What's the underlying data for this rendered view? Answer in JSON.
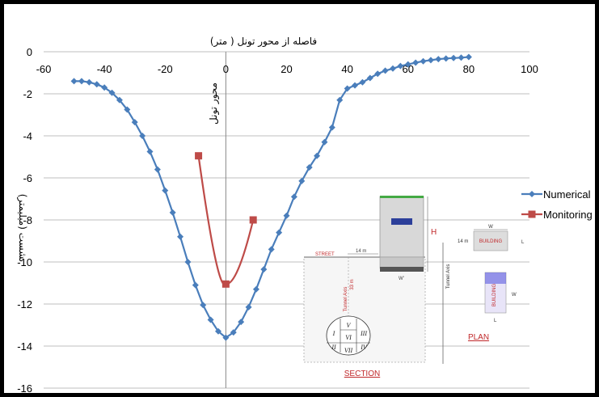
{
  "chart_data": {
    "type": "line",
    "xlabel": "فاصله از محور تونل ( متر)",
    "ylabel": "نشست (میلیمتر)",
    "xlim": [
      -60,
      100
    ],
    "ylim": [
      -16,
      0
    ],
    "x_ticks": [
      "-60",
      "-40",
      "-20",
      "0",
      "20",
      "40",
      "60",
      "80",
      "100"
    ],
    "y_ticks": [
      "0",
      "-2",
      "-4",
      "-6",
      "-8",
      "-10",
      "-12",
      "-14",
      "-16"
    ],
    "grid": "horizontal",
    "x_axis_position": "top",
    "legend": "right",
    "annotation": "محور تونل",
    "series": [
      {
        "name": "Numerical",
        "color": "#4a7ebb",
        "marker": "diamond",
        "x": [
          -50,
          -47.5,
          -45,
          -42.5,
          -40,
          -37.5,
          -35,
          -32.5,
          -30,
          -27.5,
          -25,
          -22.5,
          -20,
          -17.5,
          -15,
          -12.5,
          -10,
          -7.5,
          -5,
          -2.5,
          0,
          2.5,
          5,
          7.5,
          10,
          12.5,
          15,
          17.5,
          20,
          22.5,
          25,
          27.5,
          30,
          32.5,
          35,
          37.5,
          40,
          42.5,
          45,
          47.5,
          50,
          52.5,
          55,
          57.5,
          60,
          62.5,
          65,
          67.5,
          70,
          72.5,
          75,
          77.5,
          80
        ],
        "y": [
          -1.4,
          -1.4,
          -1.45,
          -1.55,
          -1.7,
          -1.95,
          -2.3,
          -2.75,
          -3.35,
          -4.0,
          -4.75,
          -5.6,
          -6.6,
          -7.65,
          -8.8,
          -10.0,
          -11.1,
          -12.05,
          -12.75,
          -13.3,
          -13.6,
          -13.35,
          -12.85,
          -12.15,
          -11.3,
          -10.35,
          -9.4,
          -8.6,
          -7.8,
          -6.9,
          -6.15,
          -5.5,
          -4.95,
          -4.3,
          -3.6,
          -2.3,
          -1.75,
          -1.6,
          -1.45,
          -1.25,
          -1.05,
          -0.9,
          -0.8,
          -0.68,
          -0.6,
          -0.52,
          -0.45,
          -0.4,
          -0.35,
          -0.32,
          -0.3,
          -0.28,
          -0.25
        ]
      },
      {
        "name": "Monitoring",
        "color": "#be4b48",
        "marker": "square",
        "x": [
          -9,
          0,
          9
        ],
        "y": [
          -4.95,
          -11.05,
          -8.0
        ]
      }
    ]
  },
  "inset": {
    "street_label": "STREET",
    "dim_14m_top": "14 m",
    "tunnel_axis_label": "Tunnel Axis",
    "depth_label": "33 m",
    "height_label": "H",
    "width_label_w": "W'",
    "plan_dim_14m": "14 m",
    "plan_w": "W",
    "plan_l": "L",
    "building_label": "BUILDING",
    "tunnel_axis_plan": "Tunnel Axis",
    "building_label_2": "BUILDING",
    "side_w": "W",
    "bottom_l": "L",
    "section_label": "SECTION",
    "plan_label": "PLAN",
    "roman": [
      "I",
      "V",
      "III",
      "II",
      "VI",
      "IV",
      "VII"
    ]
  }
}
